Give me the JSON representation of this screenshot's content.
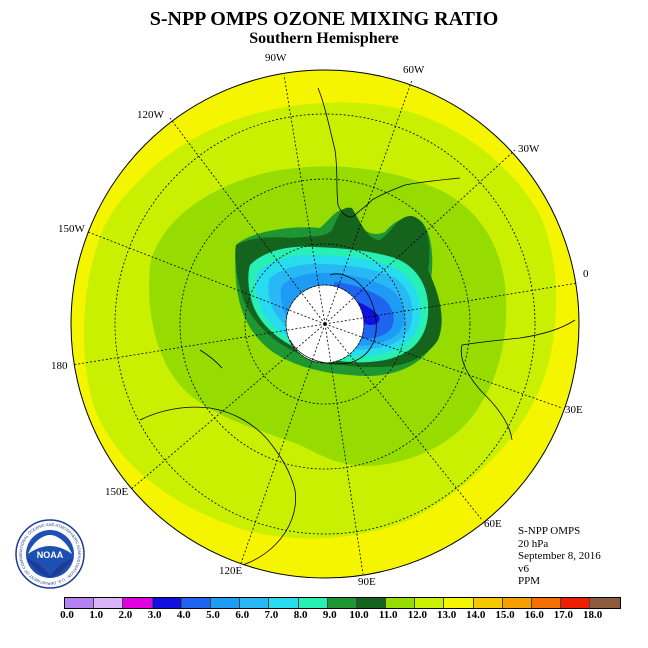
{
  "title": "S-NPP OMPS OZONE MIXING RATIO",
  "subtitle": "Southern Hemisphere",
  "longitude_labels": {
    "lon_90w": "90W",
    "lon_60w": "60W",
    "lon_30w": "30W",
    "lon_0": "0",
    "lon_30e": "30E",
    "lon_60e": "60E",
    "lon_90e": "90E",
    "lon_120e": "120E",
    "lon_150e": "150E",
    "lon_180": "180",
    "lon_150w": "150W",
    "lon_120w": "120W"
  },
  "info": {
    "instrument": "S-NPP OMPS",
    "level": "20 hPa",
    "date": "September 8, 2016",
    "version": "v6",
    "units": "PPM"
  },
  "logo": {
    "text": "NOAA",
    "ring_text": "NATIONAL OCEANIC AND ATMOSPHERIC ADMINISTRATION · U.S. DEPARTMENT OF COMMERCE"
  },
  "colorbar": {
    "tick_labels": [
      "0.0",
      "1.0",
      "2.0",
      "3.0",
      "4.0",
      "5.0",
      "6.0",
      "7.0",
      "8.0",
      "9.0",
      "10.0",
      "11.0",
      "12.0",
      "13.0",
      "14.0",
      "15.0",
      "16.0",
      "17.0",
      "18.0"
    ],
    "colors": [
      "#b482f0",
      "#d8b4f8",
      "#e000e0",
      "#1010e0",
      "#1e64f0",
      "#1e9bf5",
      "#28b9f5",
      "#28dcf0",
      "#28f0b4",
      "#1e9632",
      "#14641e",
      "#96dc00",
      "#c8f000",
      "#f5f500",
      "#f5c800",
      "#f5a000",
      "#f56e00",
      "#f01e00",
      "#8c5a3c"
    ]
  },
  "map_colors": {
    "yellow": "#f5f500",
    "yellow_green": "#c8f000",
    "light_green": "#96dc00",
    "green": "#1e9632",
    "dark_green": "#14641e",
    "teal": "#28f0b4",
    "cyan": "#28dcf0",
    "light_blue": "#28b9f5",
    "blue": "#1e9bf5",
    "mid_blue": "#1e64f0",
    "deep_blue": "#1010e0",
    "missing": "#ffffff"
  }
}
